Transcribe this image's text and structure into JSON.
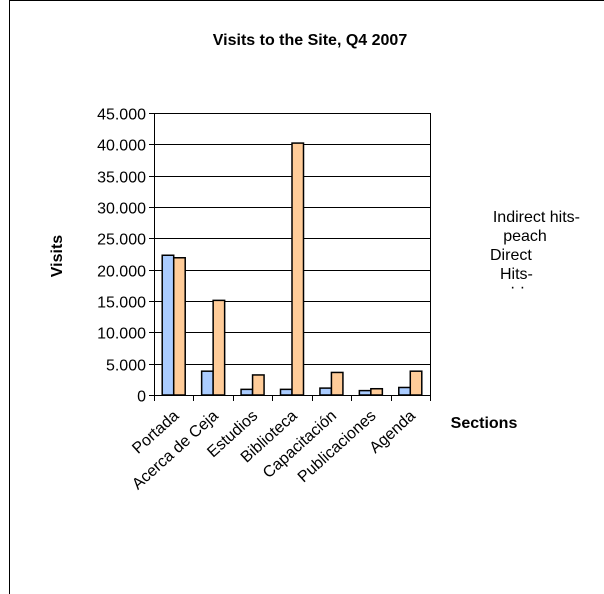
{
  "chart_data": {
    "type": "bar",
    "title": "Visits to the Site, Q4 2007",
    "xlabel": "Sections",
    "ylabel": "Visits",
    "categories": [
      "Portada",
      "Acerca de Ceja",
      "Estudios",
      "Biblioteca",
      "Capacitación",
      "Publicaciones",
      "Agenda"
    ],
    "series": [
      {
        "name": "Direct Hits-",
        "color": "#aaccff",
        "values": [
          22300,
          3800,
          900,
          900,
          1100,
          700,
          1200
        ]
      },
      {
        "name": "Indirect hits-peach",
        "color": "#ffcc99",
        "values": [
          21900,
          15100,
          3200,
          40200,
          3600,
          1000,
          3800
        ]
      }
    ],
    "ylim": [
      0,
      45000
    ],
    "yticks": [
      "0",
      "5.000",
      "10.000",
      "15.000",
      "20.000",
      "25.000",
      "30.000",
      "35.000",
      "40.000",
      "45.000"
    ],
    "grid": true,
    "legend_position": "right"
  },
  "legend": {
    "line1": "Indirect hits-",
    "line2": "peach",
    "line3": "Direct",
    "line4": "Hits-",
    "line5": "· ·"
  }
}
